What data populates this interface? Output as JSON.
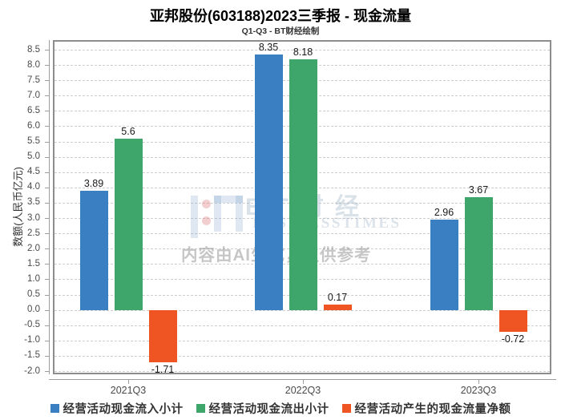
{
  "title": "亚邦股份(603188)2023三季报 - 现金流量",
  "subtitle": "Q1-Q3 - BT财经绘制",
  "watermark": {
    "logo": "bt-logo",
    "brand_cn": "BT财经",
    "brand_en": "BUSINESSTIMES",
    "disclaimer": "内容由AI生成，仅供参考"
  },
  "chart_data": {
    "type": "bar",
    "categories": [
      "2021Q3",
      "2022Q3",
      "2023Q3"
    ],
    "series": [
      {
        "name": "经营活动现金流入小计",
        "color": "#3a7fc2",
        "values": [
          3.89,
          8.35,
          2.96
        ]
      },
      {
        "name": "经营活动现金流出小计",
        "color": "#3fa66b",
        "values": [
          5.6,
          8.18,
          3.67
        ]
      },
      {
        "name": "经营活动产生的现金流量净额",
        "color": "#ef5423",
        "values": [
          -1.71,
          0.17,
          -0.72
        ]
      }
    ],
    "xlabel": "",
    "ylabel": "数额(人民币亿元)",
    "ylim": [
      -2.0,
      8.5
    ],
    "ytick_step": 0.5,
    "grid": true,
    "grid_style": "dashed",
    "legend_position": "bottom",
    "value_labels": true
  }
}
